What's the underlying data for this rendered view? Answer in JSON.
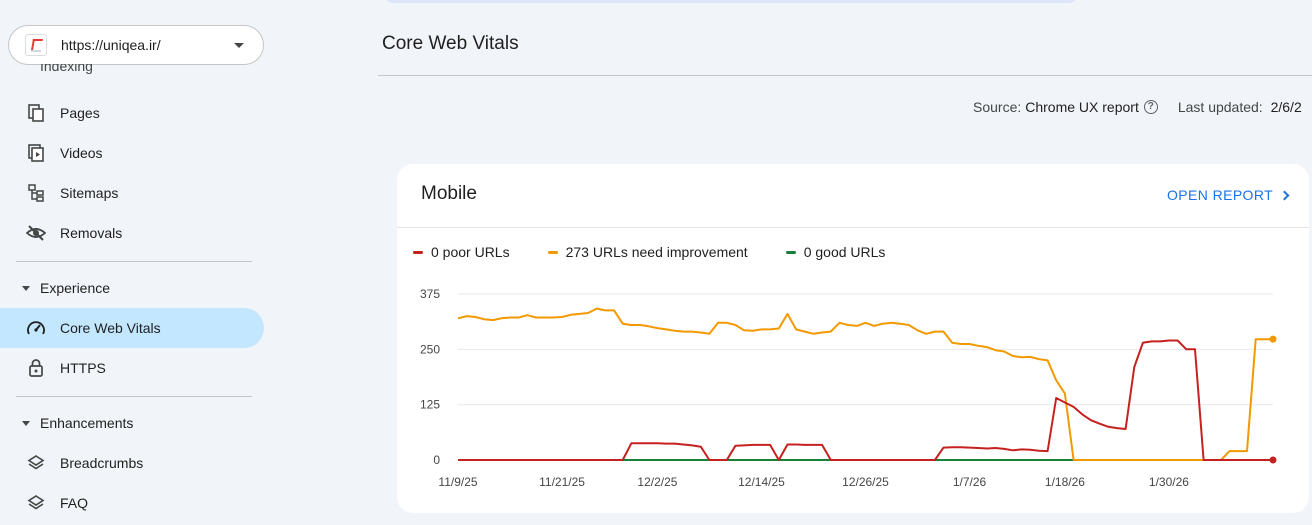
{
  "property": {
    "url": "https://uniqea.ir/"
  },
  "sidebar": {
    "clipped_label": "Indexing",
    "indexing_items": [
      {
        "label": "Pages",
        "icon": "pages-icon"
      },
      {
        "label": "Videos",
        "icon": "videos-icon"
      },
      {
        "label": "Sitemaps",
        "icon": "sitemaps-icon"
      },
      {
        "label": "Removals",
        "icon": "removals-icon"
      }
    ],
    "experience_header": "Experience",
    "experience_items": [
      {
        "label": "Core Web Vitals",
        "icon": "speed-gauge-icon",
        "active": true
      },
      {
        "label": "HTTPS",
        "icon": "lock-icon"
      }
    ],
    "enhancements_header": "Enhancements",
    "enhancement_items": [
      {
        "label": "Breadcrumbs",
        "icon": "layers-icon"
      },
      {
        "label": "FAQ",
        "icon": "layers-icon"
      }
    ]
  },
  "main": {
    "title": "Core Web Vitals",
    "source_label": "Source:",
    "source_value": "Chrome UX report",
    "updated_label": "Last updated:",
    "updated_value": "2/6/2"
  },
  "card": {
    "title": "Mobile",
    "open_report": "OPEN REPORT",
    "legend": [
      {
        "label": "0 poor URLs",
        "color": "#c5221f"
      },
      {
        "label": "273 URLs need improvement",
        "color": "#f29900"
      },
      {
        "label": "0 good URLs",
        "color": "#188038"
      }
    ]
  },
  "chart_data": {
    "type": "line",
    "ylim": [
      0,
      375
    ],
    "yticks": [
      0,
      125,
      250,
      375
    ],
    "x_tick_labels": [
      "11/9/25",
      "11/21/25",
      "12/2/25",
      "12/14/25",
      "12/26/25",
      "1/7/26",
      "1/18/26",
      "1/30/26"
    ],
    "x_tick_index": [
      0,
      12,
      23,
      35,
      47,
      59,
      70,
      82
    ],
    "series": [
      {
        "name": "need improvement",
        "color": "#f29900",
        "values": [
          320,
          325,
          323,
          318,
          316,
          320,
          322,
          322,
          327,
          322,
          322,
          322,
          323,
          328,
          330,
          332,
          342,
          338,
          338,
          308,
          305,
          305,
          302,
          298,
          295,
          292,
          290,
          290,
          288,
          285,
          310,
          310,
          305,
          293,
          292,
          295,
          295,
          297,
          330,
          295,
          290,
          285,
          288,
          290,
          310,
          305,
          303,
          310,
          303,
          308,
          310,
          308,
          305,
          293,
          285,
          290,
          290,
          265,
          262,
          262,
          258,
          255,
          248,
          245,
          235,
          232,
          233,
          228,
          225,
          180,
          150,
          0,
          0,
          0,
          0,
          0,
          0,
          0,
          0,
          0,
          0,
          0,
          0,
          0,
          0,
          0,
          0,
          0,
          0,
          20,
          20,
          20,
          273,
          273,
          273
        ]
      },
      {
        "name": "poor",
        "color": "#c5221f",
        "values": [
          0,
          0,
          0,
          0,
          0,
          0,
          0,
          0,
          0,
          0,
          0,
          0,
          0,
          0,
          0,
          0,
          0,
          0,
          0,
          0,
          38,
          38,
          38,
          38,
          37,
          37,
          35,
          33,
          30,
          0,
          0,
          0,
          32,
          33,
          34,
          34,
          34,
          0,
          35,
          35,
          34,
          34,
          34,
          0,
          0,
          0,
          0,
          0,
          0,
          0,
          0,
          0,
          0,
          0,
          0,
          0,
          28,
          29,
          29,
          28,
          27,
          26,
          27,
          25,
          22,
          24,
          23,
          21,
          20,
          140,
          130,
          120,
          103,
          90,
          82,
          75,
          72,
          70,
          210,
          265,
          268,
          268,
          270,
          270,
          250,
          250,
          0,
          0,
          0,
          0,
          0,
          0,
          0,
          0,
          0
        ]
      },
      {
        "name": "good",
        "color": "#188038",
        "values": [
          0,
          0,
          0,
          0,
          0,
          0,
          0,
          0,
          0,
          0,
          0,
          0,
          0,
          0,
          0,
          0,
          0,
          0,
          0,
          0,
          0,
          0,
          0,
          0,
          0,
          0,
          0,
          0,
          0,
          0,
          0,
          0,
          0,
          0,
          0,
          0,
          0,
          0,
          0,
          0,
          0,
          0,
          0,
          0,
          0,
          0,
          0,
          0,
          0,
          0,
          0,
          0,
          0,
          0,
          0,
          0,
          0,
          0,
          0,
          0,
          0,
          0,
          0,
          0,
          0,
          0,
          0,
          0,
          0,
          0,
          0,
          0,
          0,
          0,
          0,
          0,
          0,
          0,
          0,
          0,
          0,
          0,
          0,
          0,
          0,
          0,
          0,
          0,
          0,
          0,
          0,
          0,
          0,
          0,
          0
        ]
      }
    ]
  }
}
